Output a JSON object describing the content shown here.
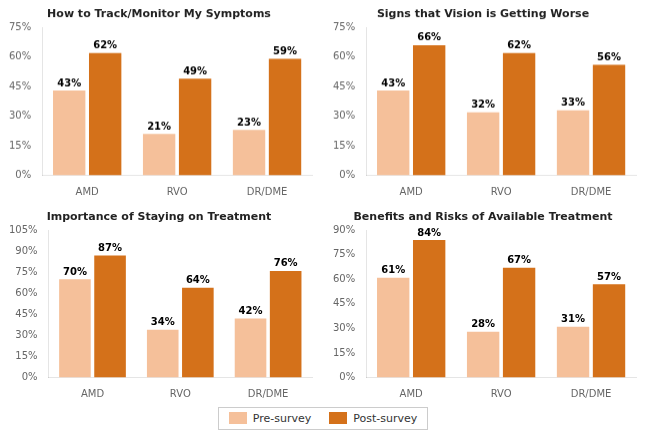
{
  "chart_data": [
    {
      "type": "bar",
      "title": "How to Track/Monitor My Symptoms",
      "categories": [
        "AMD",
        "RVO",
        "DR/DME"
      ],
      "series": [
        {
          "name": "Pre-survey",
          "color": "#F5C09A",
          "values": [
            43,
            21,
            23
          ],
          "value_labels": [
            "43%",
            "21%",
            "23%"
          ]
        },
        {
          "name": "Post-survey",
          "color": "#D4711A",
          "values": [
            62,
            49,
            59
          ],
          "value_labels": [
            "62%",
            "49%",
            "59%"
          ]
        }
      ],
      "ylim": [
        0,
        75
      ],
      "yticks": [
        {
          "value": 0,
          "label": "0%"
        },
        {
          "value": 15,
          "label": "15%"
        },
        {
          "value": 30,
          "label": "30%"
        },
        {
          "value": 45,
          "label": "45%"
        },
        {
          "value": 60,
          "label": "60%"
        },
        {
          "value": 75,
          "label": "75%"
        }
      ],
      "grid": false,
      "data_labels": true,
      "legend": "bottom"
    },
    {
      "type": "bar",
      "title": "Signs that Vision is Getting Worse",
      "categories": [
        "AMD",
        "RVO",
        "DR/DME"
      ],
      "series": [
        {
          "name": "Pre-survey",
          "color": "#F5C09A",
          "values": [
            43,
            32,
            33
          ],
          "value_labels": [
            "43%",
            "32%",
            "33%"
          ]
        },
        {
          "name": "Post-survey",
          "color": "#D4711A",
          "values": [
            66,
            62,
            56
          ],
          "value_labels": [
            "66%",
            "62%",
            "56%"
          ]
        }
      ],
      "ylim": [
        0,
        75
      ],
      "yticks": [
        {
          "value": 0,
          "label": "0%"
        },
        {
          "value": 15,
          "label": "15%"
        },
        {
          "value": 30,
          "label": "30%"
        },
        {
          "value": 45,
          "label": "45%"
        },
        {
          "value": 60,
          "label": "60%"
        },
        {
          "value": 75,
          "label": "75%"
        }
      ],
      "grid": false,
      "data_labels": true,
      "legend": "bottom"
    },
    {
      "type": "bar",
      "title": "Importance of Staying on Treatment",
      "categories": [
        "AMD",
        "RVO",
        "DR/DME"
      ],
      "series": [
        {
          "name": "Pre-survey",
          "color": "#F5C09A",
          "values": [
            70,
            34,
            42
          ],
          "value_labels": [
            "70%",
            "34%",
            "42%"
          ]
        },
        {
          "name": "Post-survey",
          "color": "#D4711A",
          "values": [
            87,
            64,
            76
          ],
          "value_labels": [
            "87%",
            "64%",
            "76%"
          ]
        }
      ],
      "ylim": [
        0,
        105
      ],
      "yticks": [
        {
          "value": 0,
          "label": "0%"
        },
        {
          "value": 15,
          "label": "15%"
        },
        {
          "value": 30,
          "label": "30%"
        },
        {
          "value": 45,
          "label": "45%"
        },
        {
          "value": 60,
          "label": "60%"
        },
        {
          "value": 75,
          "label": "75%"
        },
        {
          "value": 90,
          "label": "90%"
        },
        {
          "value": 105,
          "label": "105%"
        }
      ],
      "grid": false,
      "data_labels": true,
      "legend": "bottom"
    },
    {
      "type": "bar",
      "title": "Benefits and Risks of Available Treatment",
      "categories": [
        "AMD",
        "RVO",
        "DR/DME"
      ],
      "series": [
        {
          "name": "Pre-survey",
          "color": "#F5C09A",
          "values": [
            61,
            28,
            31
          ],
          "value_labels": [
            "61%",
            "28%",
            "31%"
          ]
        },
        {
          "name": "Post-survey",
          "color": "#D4711A",
          "values": [
            84,
            67,
            57
          ],
          "value_labels": [
            "84%",
            "67%",
            "57%"
          ]
        }
      ],
      "ylim": [
        0,
        90
      ],
      "yticks": [
        {
          "value": 0,
          "label": "0%"
        },
        {
          "value": 15,
          "label": "15%"
        },
        {
          "value": 30,
          "label": "30%"
        },
        {
          "value": 45,
          "label": "45%"
        },
        {
          "value": 60,
          "label": "60%"
        },
        {
          "value": 75,
          "label": "75%"
        },
        {
          "value": 90,
          "label": "90%"
        }
      ],
      "grid": false,
      "data_labels": true,
      "legend": "bottom"
    }
  ]
}
